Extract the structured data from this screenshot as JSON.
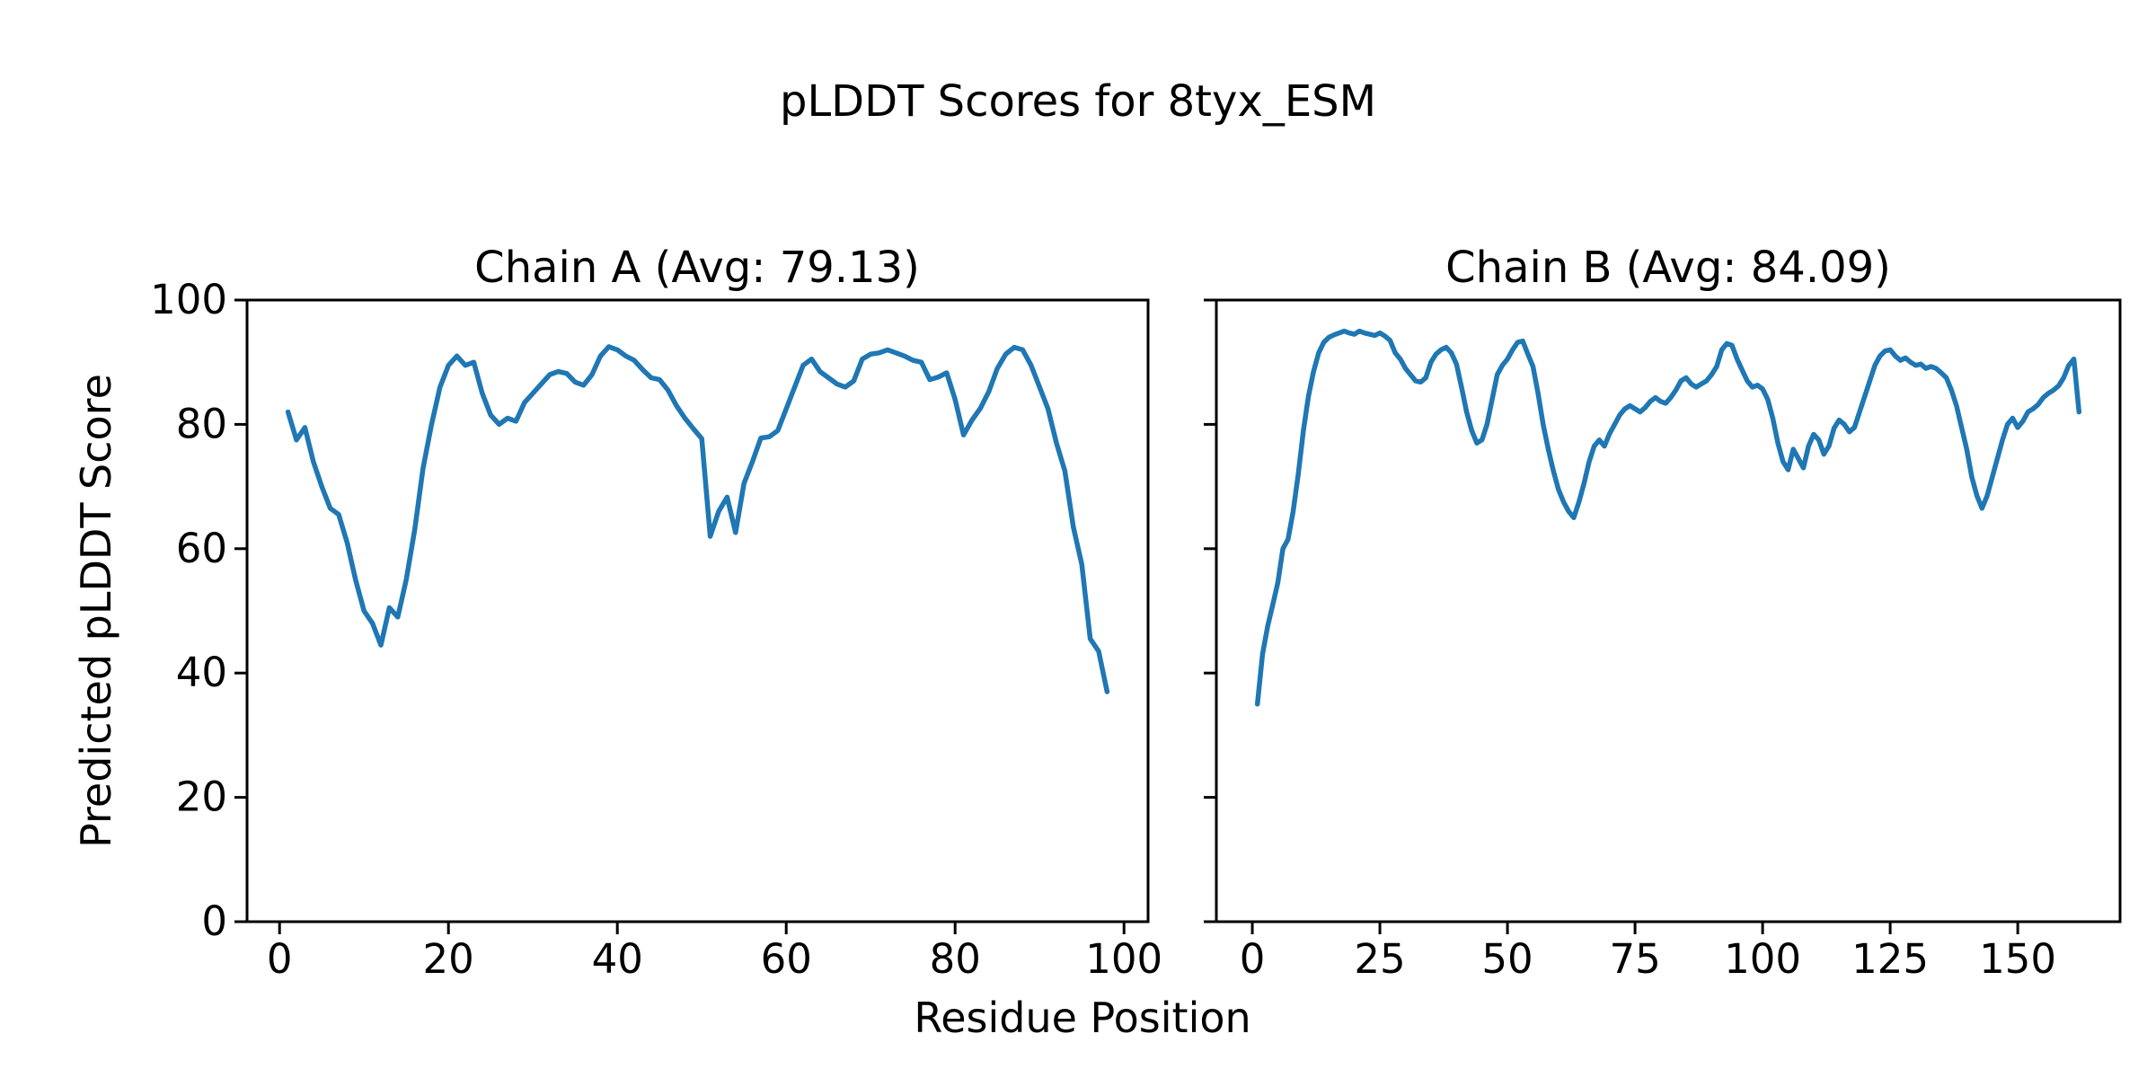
{
  "title": "pLDDT Scores for 8tyx_ESM",
  "xlabel": "Residue Position",
  "ylabel": "Predicted pLDDT Score",
  "colors": {
    "line": "#1f77b4",
    "axes": "#000000",
    "text": "#000000",
    "background": "#ffffff"
  },
  "chart_data": [
    {
      "type": "line",
      "title": "Chain A (Avg: 79.13)",
      "chain": "A",
      "avg_label": "Avg: 79.13",
      "avg": 79.13,
      "x_start": 1,
      "n_residues": 98,
      "xlim_data": [
        1,
        98
      ],
      "ylim": [
        0,
        100
      ],
      "xticks": [
        0,
        20,
        40,
        60,
        80,
        100
      ],
      "xticklabels": [
        "0",
        "20",
        "40",
        "60",
        "80",
        "100"
      ],
      "yticks": [
        0,
        20,
        40,
        60,
        80,
        100
      ],
      "yticklabels": [
        "0",
        "20",
        "40",
        "60",
        "80",
        "100"
      ],
      "grid": false,
      "values": [
        82,
        77.5,
        79.5,
        74,
        70,
        66.5,
        65.5,
        61,
        55,
        50,
        48,
        44.5,
        50.5,
        49,
        55,
        63,
        73,
        80,
        86,
        89.5,
        91,
        89.5,
        90,
        85,
        81.5,
        80,
        81,
        80.5,
        83.5,
        85,
        86.5,
        88,
        88.5,
        88.2,
        86.8,
        86.3,
        88,
        91,
        92.5,
        92,
        91,
        90.3,
        88.8,
        87.5,
        87.2,
        85.5,
        83,
        81,
        79.3,
        77.7,
        62,
        66,
        68.3,
        62.6,
        70.5,
        74,
        77.8,
        78,
        79,
        82.5,
        86,
        89.5,
        90.5,
        88.5,
        87.5,
        86.5,
        86,
        87,
        90.5,
        91.3,
        91.5,
        92,
        91.5,
        91,
        90.3,
        90,
        87.2,
        87.6,
        88.3,
        84,
        78.3,
        80.7,
        82.6,
        85.3,
        89,
        91.3,
        92.4,
        92,
        89.5,
        86,
        82.5,
        77,
        72.5,
        63.5,
        57.5,
        45.5,
        43.5,
        37
      ]
    },
    {
      "type": "line",
      "title": "Chain B (Avg: 84.09)",
      "chain": "B",
      "avg_label": "Avg: 84.09",
      "avg": 84.09,
      "x_start": 1,
      "n_residues": 162,
      "xlim_data": [
        1,
        162
      ],
      "ylim": [
        0,
        100
      ],
      "xticks": [
        0,
        25,
        50,
        75,
        100,
        125,
        150
      ],
      "xticklabels": [
        "0",
        "25",
        "50",
        "75",
        "100",
        "125",
        "150"
      ],
      "yticks": [
        0,
        20,
        40,
        60,
        80,
        100
      ],
      "yticklabels": [],
      "grid": false,
      "values": [
        35,
        43,
        47.5,
        51,
        54.5,
        60,
        61.5,
        66,
        72,
        79,
        84.5,
        88.5,
        91.5,
        93.2,
        94,
        94.4,
        94.7,
        95,
        94.7,
        94.5,
        95,
        94.7,
        94.5,
        94.3,
        94.7,
        94.2,
        93.5,
        91.5,
        90.5,
        89,
        88,
        87,
        86.8,
        87.5,
        90,
        91.3,
        92,
        92.4,
        91.5,
        89.7,
        86,
        82,
        79,
        77,
        77.5,
        80,
        84,
        88,
        89.5,
        90.5,
        92,
        93.2,
        93.4,
        91.3,
        89.3,
        85,
        80,
        76,
        72.5,
        69.5,
        67.5,
        66,
        65,
        67.5,
        70.5,
        74,
        76.5,
        77.5,
        76.5,
        78.5,
        80,
        81.5,
        82.5,
        83,
        82.5,
        82,
        82.7,
        83.7,
        84.3,
        83.7,
        83.4,
        84.3,
        85.5,
        87,
        87.5,
        86.5,
        86,
        86.5,
        87,
        88,
        89.3,
        92,
        93,
        92.7,
        90.5,
        88.7,
        87,
        86,
        86.3,
        85.7,
        84,
        81,
        77,
        74,
        72.7,
        76,
        74.5,
        73,
        76.5,
        78.4,
        77.5,
        75.2,
        76.5,
        79.4,
        80.7,
        80,
        78.8,
        79.5,
        82,
        84.5,
        87,
        89.5,
        91,
        91.8,
        92,
        91,
        90.3,
        90.7,
        90,
        89.5,
        89.7,
        89,
        89.3,
        89,
        88.3,
        87.5,
        85.5,
        83,
        79.5,
        76,
        71.5,
        68.5,
        66.5,
        68.5,
        71.5,
        74.5,
        77.5,
        80,
        81,
        79.5,
        80.5,
        82,
        82.5,
        83.2,
        84.3,
        85,
        85.5,
        86.2,
        87.5,
        89.5,
        90.5,
        82
      ]
    }
  ]
}
